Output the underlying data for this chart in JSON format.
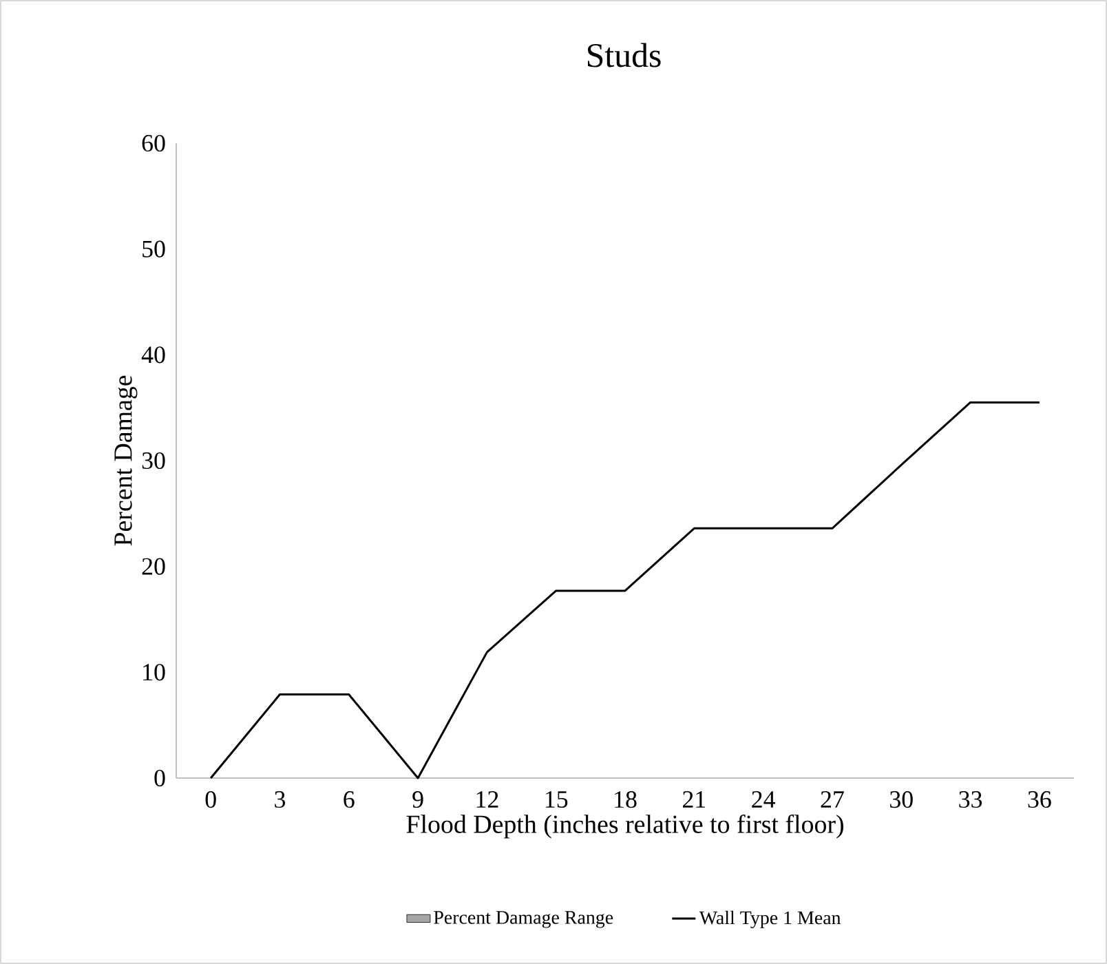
{
  "chart_data": {
    "type": "line",
    "title": "Studs",
    "xlabel": "Flood Depth (inches relative to first floor)",
    "ylabel": "Percent Damage",
    "categories": [
      "0",
      "3",
      "6",
      "9",
      "12",
      "15",
      "18",
      "21",
      "24",
      "27",
      "30",
      "33",
      "36"
    ],
    "series": [
      {
        "name": "Percent Damage Range",
        "type": "area",
        "color": "#a5a5a5",
        "values": [
          null,
          null,
          null,
          null,
          null,
          null,
          null,
          null,
          null,
          null,
          null,
          null,
          null
        ]
      },
      {
        "name": "Wall Type 1 Mean",
        "type": "line",
        "color": "#000000",
        "values": [
          0,
          7.9,
          7.9,
          0,
          11.9,
          17.7,
          17.7,
          23.6,
          23.6,
          23.6,
          29.6,
          35.5,
          35.5
        ]
      }
    ],
    "ylim": [
      0,
      60
    ],
    "yticks": [
      0,
      10,
      20,
      30,
      40,
      50,
      60
    ],
    "grid": false,
    "legend": "bottom",
    "marker": "none",
    "line_style": "solid"
  }
}
